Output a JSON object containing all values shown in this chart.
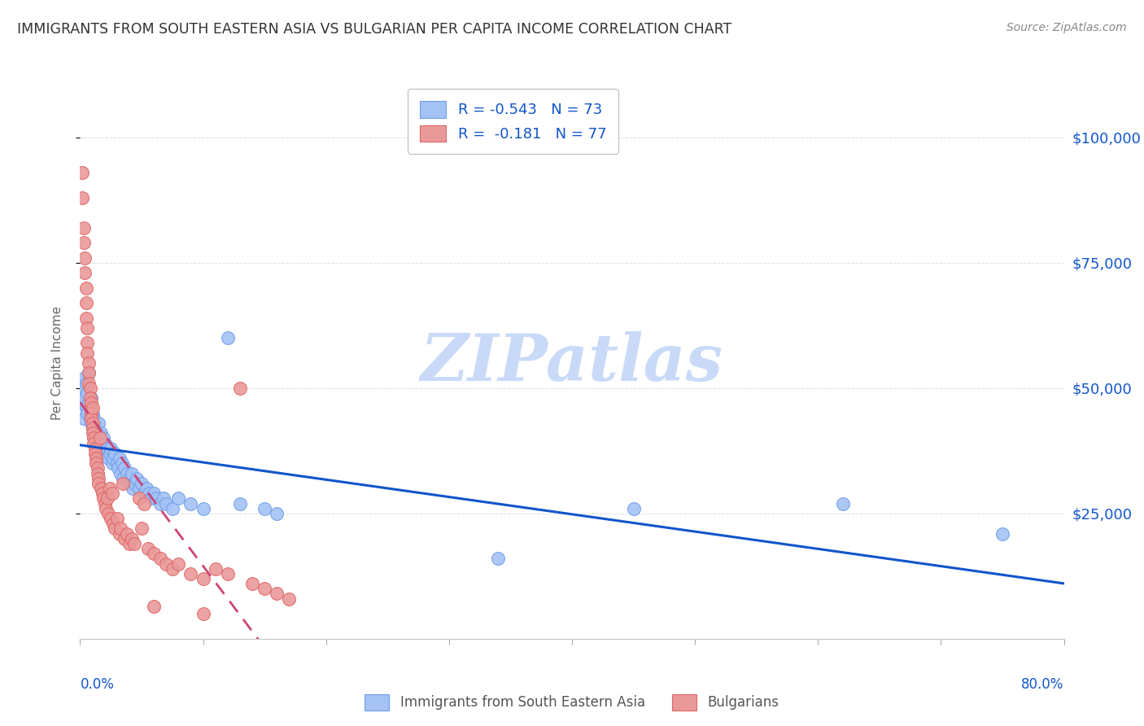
{
  "title": "IMMIGRANTS FROM SOUTH EASTERN ASIA VS BULGARIAN PER CAPITA INCOME CORRELATION CHART",
  "source": "Source: ZipAtlas.com",
  "ylabel": "Per Capita Income",
  "ytick_labels": [
    "$25,000",
    "$50,000",
    "$75,000",
    "$100,000"
  ],
  "ytick_values": [
    25000,
    50000,
    75000,
    100000
  ],
  "ymin": 0,
  "ymax": 110000,
  "xmin": 0,
  "xmax": 0.8,
  "blue_color": "#a4c2f4",
  "blue_edge_color": "#6d9eeb",
  "pink_color": "#ea9999",
  "pink_edge_color": "#e06666",
  "blue_line_color": "#1155cc",
  "pink_line_color": "#cc4477",
  "title_color": "#333333",
  "axis_label_color": "#666666",
  "watermark_color": "#c9daf8",
  "right_axis_color": "#1155cc",
  "grid_color": "#e0e0e0",
  "blue_scatter": [
    [
      0.002,
      47000
    ],
    [
      0.003,
      50000
    ],
    [
      0.003,
      44000
    ],
    [
      0.004,
      52000
    ],
    [
      0.004,
      48000
    ],
    [
      0.005,
      46000
    ],
    [
      0.005,
      51000
    ],
    [
      0.006,
      49000
    ],
    [
      0.006,
      45000
    ],
    [
      0.007,
      53000
    ],
    [
      0.007,
      47000
    ],
    [
      0.008,
      44000
    ],
    [
      0.008,
      46000
    ],
    [
      0.009,
      43000
    ],
    [
      0.009,
      48000
    ],
    [
      0.01,
      45000
    ],
    [
      0.01,
      42000
    ],
    [
      0.011,
      44000
    ],
    [
      0.011,
      41000
    ],
    [
      0.012,
      43000
    ],
    [
      0.013,
      40000
    ],
    [
      0.013,
      42000
    ],
    [
      0.014,
      41000
    ],
    [
      0.015,
      43000
    ],
    [
      0.016,
      39000
    ],
    [
      0.017,
      41000
    ],
    [
      0.018,
      38000
    ],
    [
      0.019,
      40000
    ],
    [
      0.02,
      39000
    ],
    [
      0.021,
      37000
    ],
    [
      0.022,
      38000
    ],
    [
      0.023,
      36000
    ],
    [
      0.024,
      37000
    ],
    [
      0.025,
      38000
    ],
    [
      0.026,
      35000
    ],
    [
      0.027,
      36000
    ],
    [
      0.028,
      37000
    ],
    [
      0.03,
      35000
    ],
    [
      0.031,
      34000
    ],
    [
      0.032,
      36000
    ],
    [
      0.033,
      33000
    ],
    [
      0.034,
      35000
    ],
    [
      0.035,
      32000
    ],
    [
      0.036,
      34000
    ],
    [
      0.038,
      33000
    ],
    [
      0.04,
      32000
    ],
    [
      0.041,
      31000
    ],
    [
      0.042,
      33000
    ],
    [
      0.043,
      30000
    ],
    [
      0.045,
      31000
    ],
    [
      0.046,
      32000
    ],
    [
      0.048,
      30000
    ],
    [
      0.05,
      31000
    ],
    [
      0.052,
      29000
    ],
    [
      0.054,
      30000
    ],
    [
      0.056,
      29000
    ],
    [
      0.058,
      28000
    ],
    [
      0.06,
      29000
    ],
    [
      0.062,
      28000
    ],
    [
      0.065,
      27000
    ],
    [
      0.068,
      28000
    ],
    [
      0.07,
      27000
    ],
    [
      0.075,
      26000
    ],
    [
      0.08,
      28000
    ],
    [
      0.09,
      27000
    ],
    [
      0.1,
      26000
    ],
    [
      0.12,
      60000
    ],
    [
      0.13,
      27000
    ],
    [
      0.15,
      26000
    ],
    [
      0.16,
      25000
    ],
    [
      0.45,
      26000
    ],
    [
      0.62,
      27000
    ],
    [
      0.75,
      21000
    ],
    [
      0.34,
      16000
    ]
  ],
  "pink_scatter": [
    [
      0.002,
      93000
    ],
    [
      0.002,
      88000
    ],
    [
      0.003,
      82000
    ],
    [
      0.003,
      79000
    ],
    [
      0.004,
      76000
    ],
    [
      0.004,
      73000
    ],
    [
      0.005,
      70000
    ],
    [
      0.005,
      67000
    ],
    [
      0.005,
      64000
    ],
    [
      0.006,
      62000
    ],
    [
      0.006,
      59000
    ],
    [
      0.006,
      57000
    ],
    [
      0.007,
      55000
    ],
    [
      0.007,
      53000
    ],
    [
      0.007,
      51000
    ],
    [
      0.008,
      50000
    ],
    [
      0.008,
      48000
    ],
    [
      0.008,
      46000
    ],
    [
      0.009,
      47000
    ],
    [
      0.009,
      45000
    ],
    [
      0.009,
      44000
    ],
    [
      0.01,
      46000
    ],
    [
      0.01,
      43000
    ],
    [
      0.01,
      42000
    ],
    [
      0.01,
      41000
    ],
    [
      0.011,
      40000
    ],
    [
      0.011,
      39000
    ],
    [
      0.012,
      38000
    ],
    [
      0.012,
      37000
    ],
    [
      0.013,
      36000
    ],
    [
      0.013,
      35000
    ],
    [
      0.014,
      34000
    ],
    [
      0.014,
      33000
    ],
    [
      0.015,
      32000
    ],
    [
      0.015,
      31000
    ],
    [
      0.016,
      40000
    ],
    [
      0.017,
      30000
    ],
    [
      0.018,
      29000
    ],
    [
      0.019,
      28000
    ],
    [
      0.02,
      27000
    ],
    [
      0.021,
      26000
    ],
    [
      0.022,
      28000
    ],
    [
      0.023,
      25000
    ],
    [
      0.024,
      30000
    ],
    [
      0.025,
      24000
    ],
    [
      0.026,
      29000
    ],
    [
      0.027,
      23000
    ],
    [
      0.028,
      22000
    ],
    [
      0.03,
      24000
    ],
    [
      0.032,
      21000
    ],
    [
      0.033,
      22000
    ],
    [
      0.035,
      31000
    ],
    [
      0.036,
      20000
    ],
    [
      0.038,
      21000
    ],
    [
      0.04,
      19000
    ],
    [
      0.042,
      20000
    ],
    [
      0.044,
      19000
    ],
    [
      0.048,
      28000
    ],
    [
      0.05,
      22000
    ],
    [
      0.052,
      27000
    ],
    [
      0.055,
      18000
    ],
    [
      0.06,
      17000
    ],
    [
      0.065,
      16000
    ],
    [
      0.07,
      15000
    ],
    [
      0.075,
      14000
    ],
    [
      0.08,
      15000
    ],
    [
      0.09,
      13000
    ],
    [
      0.1,
      12000
    ],
    [
      0.11,
      14000
    ],
    [
      0.12,
      13000
    ],
    [
      0.13,
      50000
    ],
    [
      0.14,
      11000
    ],
    [
      0.15,
      10000
    ],
    [
      0.16,
      9000
    ],
    [
      0.17,
      8000
    ],
    [
      0.1,
      5000
    ],
    [
      0.06,
      6500
    ]
  ]
}
